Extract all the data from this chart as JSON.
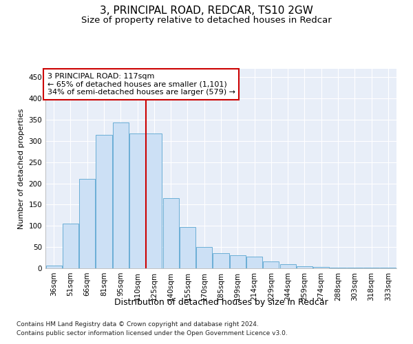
{
  "title": "3, PRINCIPAL ROAD, REDCAR, TS10 2GW",
  "subtitle": "Size of property relative to detached houses in Redcar",
  "xlabel": "Distribution of detached houses by size in Redcar",
  "ylabel": "Number of detached properties",
  "footer_line1": "Contains HM Land Registry data © Crown copyright and database right 2024.",
  "footer_line2": "Contains public sector information licensed under the Open Government Licence v3.0.",
  "categories": [
    "36sqm",
    "51sqm",
    "66sqm",
    "81sqm",
    "95sqm",
    "110sqm",
    "125sqm",
    "140sqm",
    "155sqm",
    "170sqm",
    "185sqm",
    "199sqm",
    "214sqm",
    "229sqm",
    "244sqm",
    "259sqm",
    "274sqm",
    "288sqm",
    "303sqm",
    "318sqm",
    "333sqm"
  ],
  "values": [
    7,
    105,
    210,
    315,
    343,
    318,
    318,
    165,
    97,
    50,
    36,
    30,
    28,
    17,
    9,
    5,
    4,
    2,
    1,
    1,
    1
  ],
  "bar_color_fill": "#cce0f5",
  "bar_color_edge": "#6aaed6",
  "red_line_x": 5.5,
  "annotation_title": "3 PRINCIPAL ROAD: 117sqm",
  "annotation_line1": "← 65% of detached houses are smaller (1,101)",
  "annotation_line2": "34% of semi-detached houses are larger (579) →",
  "red_line_color": "#cc0000",
  "annotation_box_edge": "#cc0000",
  "ylim": [
    0,
    470
  ],
  "yticks": [
    0,
    50,
    100,
    150,
    200,
    250,
    300,
    350,
    400,
    450
  ],
  "bg_color": "#ffffff",
  "plot_bg_color": "#e8eef8",
  "title_fontsize": 11,
  "subtitle_fontsize": 9.5,
  "xlabel_fontsize": 9,
  "ylabel_fontsize": 8,
  "tick_fontsize": 7.5,
  "footer_fontsize": 6.5
}
